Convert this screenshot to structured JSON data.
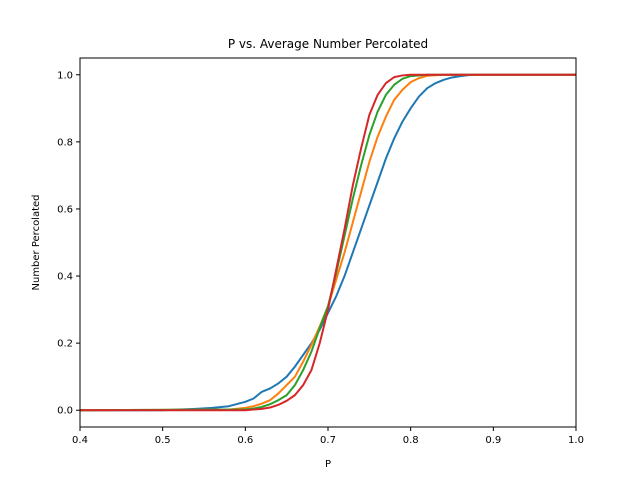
{
  "chart_data": {
    "type": "line",
    "title": "P vs. Average Number Percolated",
    "xlabel": "P",
    "ylabel": "Number Percolated",
    "xlim": [
      0.4,
      1.0
    ],
    "ylim": [
      -0.05,
      1.05
    ],
    "xticks": [
      "0.4",
      "0.5",
      "0.6",
      "0.7",
      "0.8",
      "0.9",
      "1.0"
    ],
    "yticks": [
      "0.0",
      "0.2",
      "0.4",
      "0.6",
      "0.8",
      "1.0"
    ],
    "grid": false,
    "series": [
      {
        "color": "#1f77b4",
        "x": [
          0.4,
          0.5,
          0.52,
          0.54,
          0.56,
          0.58,
          0.6,
          0.61,
          0.62,
          0.63,
          0.64,
          0.65,
          0.66,
          0.67,
          0.68,
          0.69,
          0.7,
          0.71,
          0.72,
          0.73,
          0.74,
          0.75,
          0.76,
          0.77,
          0.78,
          0.79,
          0.8,
          0.81,
          0.82,
          0.83,
          0.84,
          0.85,
          0.86,
          0.87,
          0.88,
          1.0
        ],
        "y": [
          0.0,
          0.0,
          0.002,
          0.004,
          0.007,
          0.012,
          0.025,
          0.035,
          0.055,
          0.065,
          0.08,
          0.1,
          0.13,
          0.165,
          0.2,
          0.24,
          0.29,
          0.34,
          0.4,
          0.47,
          0.54,
          0.61,
          0.68,
          0.75,
          0.81,
          0.86,
          0.9,
          0.935,
          0.96,
          0.975,
          0.985,
          0.992,
          0.996,
          0.999,
          1.0,
          1.0
        ]
      },
      {
        "color": "#ff7f0e",
        "x": [
          0.4,
          0.58,
          0.6,
          0.61,
          0.62,
          0.63,
          0.64,
          0.65,
          0.66,
          0.67,
          0.68,
          0.69,
          0.7,
          0.71,
          0.72,
          0.73,
          0.74,
          0.75,
          0.76,
          0.77,
          0.78,
          0.79,
          0.8,
          0.81,
          0.82,
          0.84,
          1.0
        ],
        "y": [
          0.0,
          0.002,
          0.007,
          0.012,
          0.02,
          0.03,
          0.05,
          0.075,
          0.1,
          0.145,
          0.195,
          0.25,
          0.31,
          0.39,
          0.47,
          0.56,
          0.65,
          0.74,
          0.815,
          0.875,
          0.925,
          0.955,
          0.978,
          0.99,
          0.997,
          1.0,
          1.0
        ]
      },
      {
        "color": "#2ca02c",
        "x": [
          0.4,
          0.6,
          0.61,
          0.62,
          0.63,
          0.64,
          0.65,
          0.66,
          0.67,
          0.68,
          0.69,
          0.7,
          0.71,
          0.72,
          0.73,
          0.74,
          0.75,
          0.76,
          0.77,
          0.78,
          0.79,
          0.8,
          0.82,
          1.0
        ],
        "y": [
          0.0,
          0.002,
          0.005,
          0.01,
          0.018,
          0.03,
          0.045,
          0.075,
          0.12,
          0.175,
          0.245,
          0.31,
          0.41,
          0.52,
          0.63,
          0.73,
          0.82,
          0.89,
          0.94,
          0.97,
          0.988,
          0.996,
          1.0,
          1.0
        ]
      },
      {
        "color": "#d62728",
        "x": [
          0.4,
          0.6,
          0.61,
          0.62,
          0.63,
          0.64,
          0.65,
          0.66,
          0.67,
          0.68,
          0.69,
          0.7,
          0.71,
          0.72,
          0.73,
          0.74,
          0.75,
          0.76,
          0.77,
          0.78,
          0.79,
          0.8,
          0.82,
          1.0
        ],
        "y": [
          0.0,
          0.0,
          0.002,
          0.004,
          0.008,
          0.016,
          0.028,
          0.045,
          0.075,
          0.12,
          0.2,
          0.3,
          0.42,
          0.54,
          0.67,
          0.78,
          0.88,
          0.94,
          0.975,
          0.993,
          0.998,
          1.0,
          1.0,
          1.0
        ]
      }
    ]
  }
}
